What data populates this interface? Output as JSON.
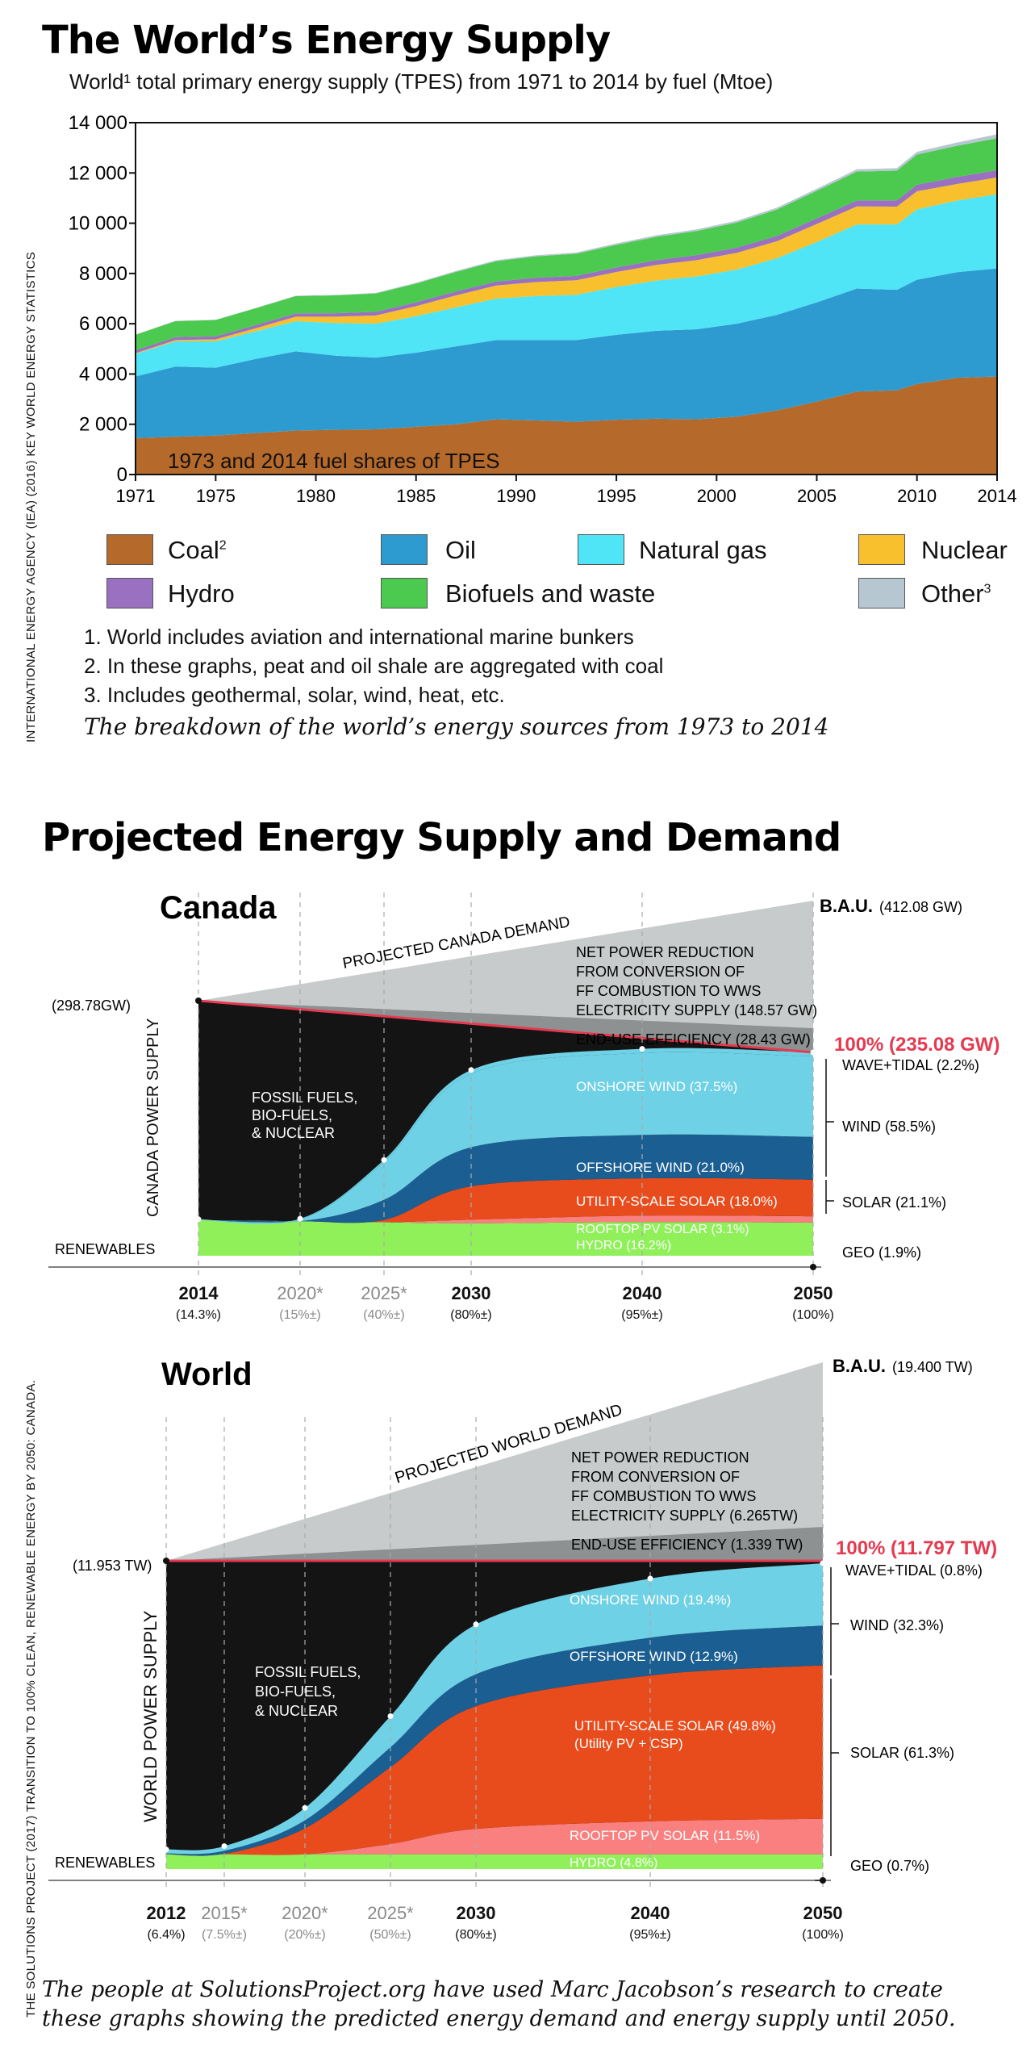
{
  "colors": {
    "coal": "#b5692a",
    "oil": "#2e9bd0",
    "natural_gas": "#4fe5f7",
    "nuclear": "#f7c02c",
    "hydro": "#9a70c0",
    "biofuels": "#4cc94f",
    "other": "#b7c7d2",
    "dark": "#141414",
    "onshore": "#6fd1e6",
    "offshore": "#1a5e92",
    "utility_solar": "#e84c1d",
    "rooftop": "#fa8080",
    "renew_green": "#8ff05a",
    "accent_red": "#e63950",
    "demand_gray": "#c8cbcb",
    "eff_gray": "#8e9191"
  },
  "top": {
    "title": "The World’s Energy Supply",
    "subtitle": "World¹ total primary energy supply (TPES) from 1971 to 2014 by fuel (Mtoe)",
    "side_credit": "INTERNATIONAL ENERGY AGENCY (IEA) (2016) KEY WORLD ENERGY STATISTICS",
    "notes": [
      "1. World includes aviation and international marine bunkers",
      "2. In these graphs, peat and oil shale are aggregated with coal",
      "3. Includes geothermal, solar, wind, heat, etc."
    ],
    "caption": "The breakdown of the world’s energy sources from 1973 to 2014"
  },
  "bottom": {
    "title": "Projected Energy Supply and Demand",
    "side_credit": "THE SOLUTIONS PROJECT (2017) TRANSITION TO 100% CLEAN, RENEWABLE ENERGY BY 2050: CANADA.",
    "caption_line1": "The people at SolutionsProject.org have used Marc Jacobson’s research to create",
    "caption_line2": "these graphs showing the predicted energy demand and energy supply until 2050."
  },
  "chart_data": [
    {
      "type": "area",
      "stacked": true,
      "inline_label": "1973 and 2014 fuel shares of TPES",
      "x": [
        1971,
        1973,
        1975,
        1977,
        1979,
        1981,
        1983,
        1985,
        1987,
        1989,
        1991,
        1993,
        1995,
        1997,
        1999,
        2001,
        2003,
        2005,
        2007,
        2009,
        2010,
        2012,
        2014
      ],
      "x_ticks": [
        "1971",
        "1975",
        "1980",
        "1985",
        "1990",
        "1995",
        "2000",
        "2005",
        "2010",
        "2014"
      ],
      "y_ticks": [
        "0",
        "2 000",
        "4 000",
        "6 000",
        "8 000",
        "10 000",
        "12 000",
        "14 000"
      ],
      "ylim": [
        0,
        14000
      ],
      "series": [
        {
          "name": "Coal",
          "sup": "2",
          "key": "coal",
          "values": [
            1450,
            1500,
            1550,
            1650,
            1750,
            1780,
            1800,
            1900,
            2000,
            2200,
            2150,
            2100,
            2180,
            2220,
            2200,
            2300,
            2550,
            2900,
            3300,
            3350,
            3600,
            3850,
            3900
          ]
        },
        {
          "name": "Oil",
          "key": "oil",
          "values": [
            2450,
            2800,
            2700,
            2950,
            3150,
            2950,
            2850,
            2950,
            3100,
            3150,
            3200,
            3250,
            3380,
            3500,
            3580,
            3700,
            3800,
            3950,
            4100,
            4000,
            4150,
            4200,
            4300
          ]
        },
        {
          "name": "Natural gas",
          "key": "natural_gas",
          "values": [
            900,
            1000,
            1050,
            1100,
            1200,
            1300,
            1350,
            1450,
            1550,
            1650,
            1750,
            1800,
            1900,
            2000,
            2100,
            2150,
            2250,
            2400,
            2550,
            2600,
            2800,
            2850,
            2950
          ]
        },
        {
          "name": "Nuclear",
          "key": "nuclear",
          "values": [
            30,
            50,
            80,
            120,
            180,
            250,
            330,
            400,
            480,
            520,
            560,
            580,
            600,
            620,
            650,
            670,
            680,
            720,
            720,
            710,
            720,
            660,
            670
          ]
        },
        {
          "name": "Hydro",
          "key": "hydro",
          "values": [
            110,
            115,
            120,
            125,
            130,
            140,
            145,
            150,
            155,
            160,
            170,
            175,
            180,
            190,
            200,
            205,
            210,
            220,
            235,
            250,
            260,
            280,
            290
          ]
        },
        {
          "name": "Biofuels and waste",
          "key": "biofuels",
          "values": [
            620,
            640,
            650,
            670,
            690,
            710,
            730,
            750,
            780,
            810,
            850,
            880,
            900,
            930,
            960,
            1000,
            1050,
            1100,
            1150,
            1180,
            1200,
            1240,
            1270
          ]
        },
        {
          "name": "Other",
          "sup": "3",
          "key": "other",
          "values": [
            10,
            10,
            12,
            15,
            18,
            20,
            25,
            30,
            35,
            40,
            45,
            50,
            55,
            60,
            65,
            70,
            75,
            80,
            90,
            100,
            110,
            130,
            160
          ]
        }
      ]
    },
    {
      "type": "area",
      "region": "Canada",
      "bau_label": "B.A.U.",
      "bau_value": "(412.08 GW)",
      "start_value": "(298.78GW)",
      "target_label": "100% (235.08 GW)",
      "demand_label": "PROJECTED CANADA DEMAND",
      "net_reduction_label": [
        "NET POWER REDUCTION",
        "FROM CONVERSION OF",
        "FF COMBUSTION TO WWS",
        "ELECTRICITY SUPPLY (148.57 GW)"
      ],
      "efficiency_label": "END-USE EFFICIENCY (28.43 GW)",
      "supply_axis_label": "CANADA  POWER SUPPLY",
      "fossil_label": [
        "FOSSIL FUELS,",
        "BIO-FUELS,",
        "& NUCLEAR"
      ],
      "renewables_label": "RENEWABLES",
      "area_labels": [
        "ONSHORE WIND (37.5%)",
        "OFFSHORE WIND (21.0%)",
        "UTILITY-SCALE SOLAR (18.0%)",
        "ROOFTOP PV SOLAR (3.1%)",
        "HYDRO (16.2%)"
      ],
      "right_labels": [
        "WAVE+TIDAL (2.2%)",
        "WIND (58.5%)",
        "SOLAR (21.1%)",
        "GEO (1.9%)"
      ],
      "x_ticks": [
        {
          "year": "2014",
          "pct": "(14.3%)",
          "projected": false
        },
        {
          "year": "2020*",
          "pct": "(15%±)",
          "projected": true
        },
        {
          "year": "2025*",
          "pct": "(40%±)",
          "projected": true
        },
        {
          "year": "2030",
          "pct": "(80%±)",
          "projected": false
        },
        {
          "year": "2040",
          "pct": "(95%±)",
          "projected": false
        },
        {
          "year": "2050",
          "pct": "(100%)",
          "projected": false
        }
      ],
      "renewable_share_pct": [
        14.3,
        15,
        40,
        80,
        95,
        100
      ]
    },
    {
      "type": "area",
      "region": "World",
      "bau_label": "B.A.U.",
      "bau_value": "(19.400 TW)",
      "start_value": "(11.953 TW)",
      "target_label": "100% (11.797 TW)",
      "demand_label": "PROJECTED  WORLD  DEMAND",
      "net_reduction_label": [
        "NET POWER REDUCTION",
        "FROM CONVERSION OF",
        "FF COMBUSTION TO WWS",
        "ELECTRICITY SUPPLY (6.265TW)"
      ],
      "efficiency_label": "END-USE EFFICIENCY (1.339 TW)",
      "supply_axis_label": "WORLD POWER SUPPLY",
      "fossil_label": [
        "FOSSIL FUELS,",
        "BIO-FUELS,",
        "& NUCLEAR"
      ],
      "renewables_label": "RENEWABLES",
      "area_labels": [
        "ONSHORE WIND (19.4%)",
        "OFFSHORE WIND (12.9%)",
        "UTILITY-SCALE SOLAR (49.8%)",
        "(Utility PV + CSP)",
        "ROOFTOP PV SOLAR (11.5%)",
        "HYDRO (4.8%)"
      ],
      "right_labels": [
        "WAVE+TIDAL (0.8%)",
        "WIND (32.3%)",
        "SOLAR (61.3%)",
        "GEO (0.7%)"
      ],
      "x_ticks": [
        {
          "year": "2012",
          "pct": "(6.4%)",
          "projected": false
        },
        {
          "year": "2015*",
          "pct": "(7.5%±)",
          "projected": true
        },
        {
          "year": "2020*",
          "pct": "(20%±)",
          "projected": true
        },
        {
          "year": "2025*",
          "pct": "(50%±)",
          "projected": true
        },
        {
          "year": "2030",
          "pct": "(80%±)",
          "projected": false
        },
        {
          "year": "2040",
          "pct": "(95%±)",
          "projected": false
        },
        {
          "year": "2050",
          "pct": "(100%)",
          "projected": false
        }
      ],
      "renewable_share_pct": [
        6.4,
        7.5,
        20,
        50,
        80,
        95,
        100
      ]
    }
  ]
}
